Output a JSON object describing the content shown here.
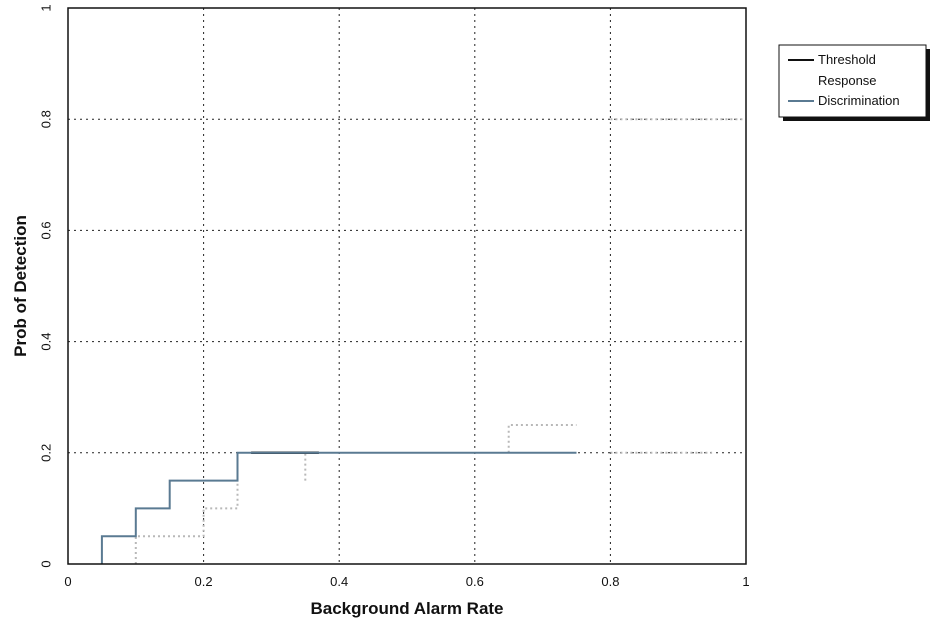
{
  "chart_data": {
    "type": "line",
    "title": "",
    "xlabel": "Background Alarm Rate",
    "ylabel": "Prob of Detection",
    "xlim": [
      0,
      1
    ],
    "ylim": [
      0,
      1
    ],
    "x_ticks": [
      "0",
      "0.2",
      "0.4",
      "0.6",
      "0.8",
      "1"
    ],
    "y_ticks": [
      "0",
      "0.2",
      "0.4",
      "0.6",
      "0.8",
      "1"
    ],
    "x_tick_values": [
      0,
      0.2,
      0.4,
      0.6,
      0.8,
      1
    ],
    "y_tick_values": [
      0,
      0.2,
      0.4,
      0.6,
      0.8,
      1
    ],
    "grid": true,
    "grid_style": "dotted",
    "legend_position": "right",
    "legend": [
      "Threshold Response",
      "Discrimination"
    ],
    "series": [
      {
        "name": "Threshold Response",
        "color": "#111111",
        "x": [
          0.27,
          0.37
        ],
        "y": [
          0.2,
          0.2
        ]
      },
      {
        "name": "Discrimination",
        "color": "#5a7a92",
        "x": [
          0.05,
          0.05,
          0.1,
          0.1,
          0.15,
          0.15,
          0.25,
          0.25,
          0.75
        ],
        "y": [
          0,
          0.05,
          0.05,
          0.1,
          0.1,
          0.15,
          0.15,
          0.2,
          0.2
        ]
      },
      {
        "color": "#b8b8b8",
        "style": "dotted",
        "x": [
          0.1,
          0.1,
          0.2,
          0.2,
          0.25,
          0.25
        ],
        "y": [
          0,
          0.05,
          0.05,
          0.1,
          0.1,
          0.15
        ]
      },
      {
        "color": "#b8b8b8",
        "style": "dotted",
        "x": [
          0.35,
          0.35
        ],
        "y": [
          0.15,
          0.2
        ]
      },
      {
        "color": "#b8b8b8",
        "style": "dotted",
        "x": [
          0.65,
          0.65,
          0.75
        ],
        "y": [
          0.2,
          0.25,
          0.25
        ]
      },
      {
        "color": "#b8b8b8",
        "style": "dotted",
        "x": [
          0.8,
          0.95
        ],
        "y": [
          0.2,
          0.2
        ]
      },
      {
        "color": "#b8b8b8",
        "style": "dotted",
        "x": [
          0.8,
          1.0
        ],
        "y": [
          0.8,
          0.8
        ]
      }
    ]
  }
}
